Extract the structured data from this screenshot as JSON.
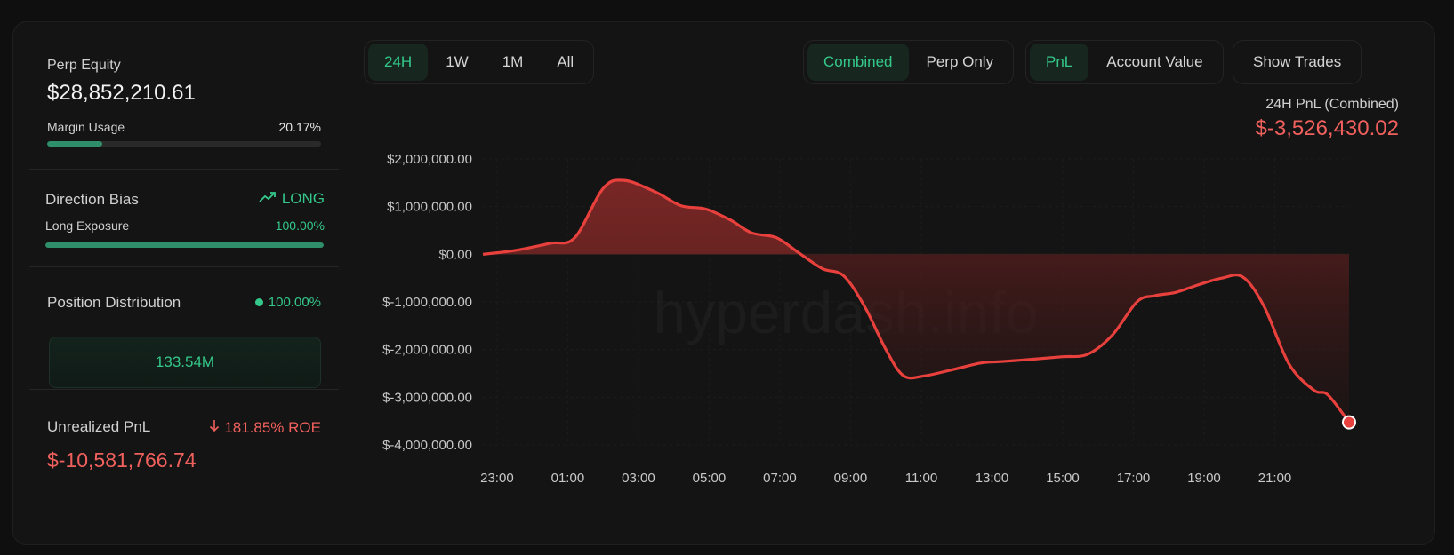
{
  "left": {
    "perp_equity": {
      "label": "Perp Equity",
      "value": "$28,852,210.61"
    },
    "margin": {
      "label": "Margin Usage",
      "value": "20.17%",
      "fraction": 0.2017
    },
    "direction": {
      "label": "Direction Bias",
      "value": "LONG",
      "icon": "trending-up-icon"
    },
    "exposure": {
      "label": "Long Exposure",
      "value": "100.00%",
      "fraction": 1.0
    },
    "distribution": {
      "label": "Position Distribution",
      "value": "100.00%",
      "box_value": "133.54M"
    },
    "unrealized": {
      "label": "Unrealized PnL",
      "roe": "181.85% ROE",
      "roe_icon": "arrow-down-icon",
      "value": "$-10,581,766.74"
    }
  },
  "toolbar": {
    "ranges": [
      "24H",
      "1W",
      "1M",
      "All"
    ],
    "range_active": "24H",
    "scope": [
      "Combined",
      "Perp Only"
    ],
    "scope_active": "Combined",
    "metric": [
      "PnL",
      "Account Value"
    ],
    "metric_active": "PnL",
    "show_trades": "Show Trades"
  },
  "summary": {
    "title": "24H PnL (Combined)",
    "value": "$-3,526,430.02"
  },
  "watermark": "hyperdash.info",
  "colors": {
    "accent": "#34c88a",
    "negative": "#f0605d",
    "line": "#e8403c"
  },
  "chart_data": {
    "type": "area",
    "title": "",
    "xlabel": "",
    "ylabel": "",
    "x_ticks": [
      "23:00",
      "01:00",
      "03:00",
      "05:00",
      "07:00",
      "09:00",
      "11:00",
      "13:00",
      "15:00",
      "17:00",
      "19:00",
      "21:00"
    ],
    "y_ticks": [
      "$2,000,000.00",
      "$1,000,000.00",
      "$0.00",
      "$-1,000,000.00",
      "$-2,000,000.00",
      "$-3,000,000.00",
      "$-4,000,000.00"
    ],
    "ylim": [
      -4000000,
      2000000
    ],
    "xlim_hours": [
      -0.4,
      24.1
    ],
    "series": [
      {
        "points": [
          [
            -0.4,
            0
          ],
          [
            0.5,
            80000
          ],
          [
            1.5,
            230000
          ],
          [
            2.2,
            350000
          ],
          [
            3.0,
            1380000
          ],
          [
            3.6,
            1550000
          ],
          [
            4.5,
            1300000
          ],
          [
            5.2,
            1020000
          ],
          [
            5.9,
            950000
          ],
          [
            6.6,
            720000
          ],
          [
            7.2,
            450000
          ],
          [
            7.9,
            350000
          ],
          [
            8.5,
            50000
          ],
          [
            9.2,
            -300000
          ],
          [
            9.8,
            -450000
          ],
          [
            10.4,
            -1100000
          ],
          [
            11.0,
            -2000000
          ],
          [
            11.5,
            -2550000
          ],
          [
            12.1,
            -2550000
          ],
          [
            13.0,
            -2400000
          ],
          [
            13.7,
            -2280000
          ],
          [
            14.3,
            -2250000
          ],
          [
            15.2,
            -2200000
          ],
          [
            16.0,
            -2150000
          ],
          [
            16.7,
            -2100000
          ],
          [
            17.4,
            -1700000
          ],
          [
            18.1,
            -1000000
          ],
          [
            18.6,
            -870000
          ],
          [
            19.2,
            -800000
          ],
          [
            19.8,
            -650000
          ],
          [
            20.5,
            -500000
          ],
          [
            21.1,
            -480000
          ],
          [
            21.7,
            -1100000
          ],
          [
            22.4,
            -2300000
          ],
          [
            23.1,
            -2850000
          ],
          [
            23.5,
            -2950000
          ],
          [
            24.1,
            -3526430
          ]
        ]
      }
    ]
  }
}
